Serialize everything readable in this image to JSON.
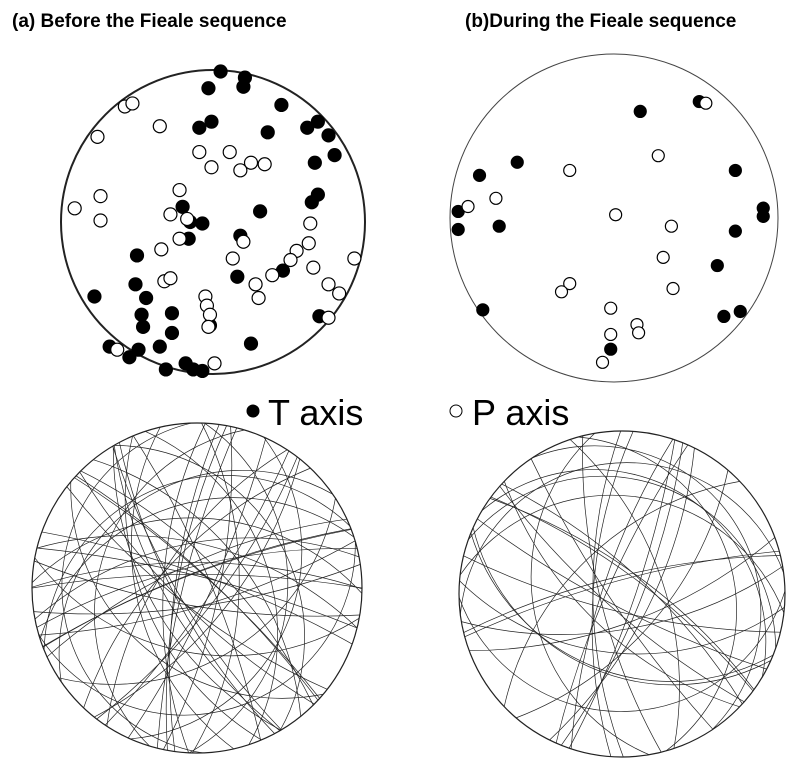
{
  "chart_data": [
    {
      "type": "scatter",
      "title": "(a) Before the Fieale sequence",
      "series": [
        {
          "name": "T axis",
          "fill": "#000000",
          "x": [
            0.05,
            0.21,
            0.2,
            -0.03,
            0.45,
            -0.01,
            -0.09,
            0.69,
            0.62,
            0.36,
            0.76,
            0.8,
            0.67,
            -0.2,
            0.69,
            0.65,
            0.31,
            -0.15,
            -0.07,
            0.18,
            -0.16,
            -0.5,
            0.16,
            0.46,
            -0.78,
            -0.51,
            -0.44,
            -0.27,
            -0.47,
            -0.02,
            -0.46,
            -0.27,
            0.7,
            0.25,
            -0.68,
            -0.49,
            -0.35,
            -0.55,
            -0.18,
            -0.31,
            -0.13,
            -0.07
          ],
          "values": [
            0.99,
            0.95,
            0.89,
            0.88,
            0.77,
            0.66,
            0.62,
            0.66,
            0.62,
            0.59,
            0.57,
            0.44,
            0.39,
            0.1,
            0.18,
            0.13,
            0.07,
            0.0,
            -0.01,
            -0.09,
            -0.11,
            -0.22,
            -0.36,
            -0.32,
            -0.49,
            -0.41,
            -0.5,
            -0.6,
            -0.61,
            -0.68,
            -0.69,
            -0.73,
            -0.62,
            -0.8,
            -0.82,
            -0.84,
            -0.82,
            -0.89,
            -0.93,
            -0.97,
            -0.97,
            -0.98
          ]
        },
        {
          "name": "P axis",
          "fill": "#ffffff",
          "x": [
            -0.58,
            -0.53,
            -0.35,
            -0.76,
            -0.09,
            0.11,
            -0.01,
            0.18,
            0.25,
            0.34,
            -0.22,
            -0.74,
            -0.91,
            -0.74,
            -0.28,
            -0.17,
            0.64,
            -0.22,
            0.2,
            0.63,
            -0.34,
            0.55,
            0.51,
            0.13,
            0.39,
            0.66,
            -0.32,
            -0.28,
            0.28,
            0.76,
            0.83,
            0.3,
            -0.05,
            -0.04,
            -0.02,
            -0.03,
            0.93,
            0.76,
            -0.63,
            0.01
          ],
          "values": [
            0.76,
            0.78,
            0.63,
            0.56,
            0.46,
            0.46,
            0.36,
            0.34,
            0.39,
            0.38,
            0.21,
            0.17,
            0.09,
            0.01,
            0.05,
            0.02,
            -0.01,
            -0.11,
            -0.13,
            -0.14,
            -0.18,
            -0.19,
            -0.25,
            -0.24,
            -0.35,
            -0.3,
            -0.39,
            -0.37,
            -0.41,
            -0.41,
            -0.47,
            -0.5,
            -0.49,
            -0.55,
            -0.61,
            -0.69,
            -0.24,
            -0.63,
            -0.84,
            -0.93
          ]
        }
      ]
    },
    {
      "type": "scatter",
      "title": "(b)During the Fieale sequence",
      "series": [
        {
          "fill": "#000000",
          "x": [
            0.16,
            0.52,
            -0.59,
            -0.82,
            0.74,
            -0.95,
            -0.95,
            -0.7,
            0.91,
            0.91,
            0.74,
            0.63,
            -0.8,
            0.67,
            0.77,
            -0.02
          ],
          "values": [
            0.65,
            0.71,
            0.34,
            0.26,
            0.29,
            0.04,
            -0.07,
            -0.05,
            0.06,
            0.01,
            -0.08,
            -0.29,
            -0.56,
            -0.6,
            -0.57,
            -0.8
          ]
        },
        {
          "fill": "#ffffff",
          "x": [
            0.56,
            0.27,
            -0.27,
            -0.89,
            -0.72,
            0.01,
            0.35,
            0.3,
            0.36,
            -0.27,
            -0.32,
            -0.02,
            0.14,
            0.15,
            -0.02,
            -0.07
          ],
          "values": [
            0.7,
            0.38,
            0.29,
            0.07,
            0.12,
            0.02,
            -0.05,
            -0.24,
            -0.43,
            -0.4,
            -0.45,
            -0.55,
            -0.65,
            -0.7,
            -0.71,
            -0.88
          ]
        }
      ]
    }
  ]
}
